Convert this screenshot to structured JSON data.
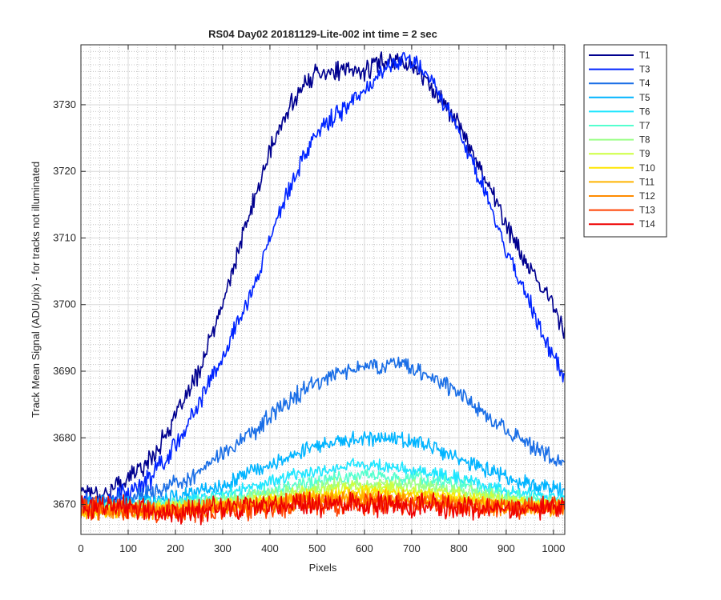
{
  "chart_data": {
    "type": "line",
    "title": "RS04 Day02 20181129-Lite-002 int time = 2 sec",
    "xlabel": "Pixels",
    "ylabel": "Track Mean Signal (ADU/pix) - for tracks not illuminated",
    "xlim": [
      0,
      1024
    ],
    "ylim": [
      3665.5,
      3739
    ],
    "xticks": [
      0,
      100,
      200,
      300,
      400,
      500,
      600,
      700,
      800,
      900,
      1000
    ],
    "yticks": [
      3670,
      3680,
      3690,
      3700,
      3710,
      3720,
      3730
    ],
    "grid": true,
    "minor_grid": true,
    "legend_position": "outside-top-right",
    "x": [
      0,
      50,
      100,
      150,
      200,
      250,
      300,
      350,
      400,
      450,
      500,
      550,
      600,
      650,
      700,
      750,
      800,
      850,
      900,
      950,
      1000,
      1024
    ],
    "series": [
      {
        "name": "T1",
        "color": "#00008f",
        "noise": 0.9,
        "values": [
          3672.5,
          3671.5,
          3674,
          3677,
          3683,
          3690,
          3700,
          3712,
          3723,
          3731,
          3735,
          3735,
          3735,
          3737,
          3736,
          3732,
          3727,
          3720,
          3712,
          3705,
          3700,
          3696
        ]
      },
      {
        "name": "T3",
        "color": "#0024ff",
        "noise": 0.9,
        "values": [
          3671,
          3670.5,
          3672,
          3674,
          3679,
          3685,
          3692,
          3700,
          3710,
          3719,
          3726,
          3729,
          3732,
          3736,
          3737,
          3733,
          3726,
          3718,
          3708,
          3700,
          3692,
          3689
        ]
      },
      {
        "name": "T4",
        "color": "#1a6ee6",
        "noise": 0.8,
        "values": [
          3670.5,
          3670.5,
          3671,
          3671.5,
          3673,
          3675,
          3677.5,
          3680,
          3683,
          3686,
          3688.5,
          3690,
          3690.5,
          3691,
          3690.5,
          3689,
          3687,
          3684,
          3681,
          3679,
          3677,
          3676
        ]
      },
      {
        "name": "T5",
        "color": "#00b4ff",
        "noise": 0.7,
        "values": [
          3670,
          3670,
          3670,
          3670.5,
          3671,
          3672,
          3673,
          3674.5,
          3676,
          3677.5,
          3679,
          3679.5,
          3680,
          3680,
          3679.5,
          3678.5,
          3677,
          3675.5,
          3674,
          3673,
          3672.5,
          3672
        ]
      },
      {
        "name": "T6",
        "color": "#1ee6ff",
        "noise": 0.6,
        "values": [
          3669.5,
          3669.5,
          3670,
          3670,
          3670.5,
          3671,
          3671.5,
          3672.5,
          3673.5,
          3674.5,
          3675,
          3675.5,
          3676,
          3675.5,
          3675,
          3674.5,
          3674,
          3673,
          3672,
          3671.5,
          3671,
          3671
        ]
      },
      {
        "name": "T7",
        "color": "#55ffcf",
        "noise": 0.6,
        "values": [
          3669.5,
          3669.5,
          3669.5,
          3670,
          3670,
          3670.5,
          3671,
          3671.5,
          3672,
          3673,
          3673.5,
          3674,
          3674.5,
          3674,
          3674,
          3673.5,
          3673,
          3672,
          3671.5,
          3671,
          3670.5,
          3670.5
        ]
      },
      {
        "name": "T8",
        "color": "#9bff88",
        "noise": 0.6,
        "values": [
          3669.5,
          3669.5,
          3669.5,
          3669.5,
          3670,
          3670,
          3670.5,
          3671,
          3671.5,
          3672,
          3672.5,
          3673,
          3673,
          3673,
          3673,
          3672.5,
          3672,
          3671.5,
          3671,
          3670.5,
          3670,
          3670
        ]
      },
      {
        "name": "T9",
        "color": "#cdff40",
        "noise": 0.6,
        "values": [
          3669,
          3669,
          3669.5,
          3669.5,
          3669.5,
          3670,
          3670,
          3670.5,
          3671,
          3671.5,
          3672,
          3672.5,
          3672.5,
          3672.5,
          3672,
          3672,
          3671.5,
          3671,
          3670.5,
          3670,
          3670,
          3670
        ]
      },
      {
        "name": "T10",
        "color": "#ffe600",
        "noise": 0.6,
        "values": [
          3669,
          3669,
          3669,
          3669.5,
          3669.5,
          3669.5,
          3670,
          3670,
          3670.5,
          3671,
          3671.5,
          3671.5,
          3672,
          3672,
          3671.5,
          3671.5,
          3671,
          3670.5,
          3670,
          3670,
          3669.5,
          3669.5
        ]
      },
      {
        "name": "T11",
        "color": "#ffb400",
        "noise": 0.7,
        "values": [
          3669,
          3669,
          3669,
          3669,
          3669.5,
          3669.5,
          3669.5,
          3670,
          3670,
          3670.5,
          3671,
          3671,
          3671,
          3671,
          3671,
          3670.5,
          3670.5,
          3670,
          3670,
          3669.5,
          3669.5,
          3669.5
        ]
      },
      {
        "name": "T12",
        "color": "#ff8c00",
        "noise": 0.8,
        "values": [
          3669,
          3669,
          3669,
          3669,
          3669,
          3669.5,
          3669.5,
          3669.5,
          3670,
          3670,
          3670.5,
          3670.5,
          3670.5,
          3670.5,
          3670.5,
          3670.5,
          3670,
          3670,
          3669.5,
          3669.5,
          3669.5,
          3669.5
        ]
      },
      {
        "name": "T13",
        "color": "#ff4000",
        "noise": 1.0,
        "values": [
          3669.5,
          3669.5,
          3669,
          3669,
          3669,
          3669,
          3669.5,
          3669.5,
          3669.5,
          3670,
          3670,
          3670,
          3670,
          3670,
          3670,
          3670,
          3669.5,
          3669.5,
          3669.5,
          3669.5,
          3669.5,
          3670
        ]
      },
      {
        "name": "T14",
        "color": "#ee0000",
        "noise": 1.1,
        "values": [
          3669.5,
          3669.5,
          3669.5,
          3669,
          3669,
          3669,
          3669.5,
          3669.5,
          3670,
          3670,
          3670,
          3670,
          3670,
          3670,
          3670,
          3670,
          3669.5,
          3669.5,
          3669.5,
          3669.5,
          3669.5,
          3670
        ]
      }
    ]
  }
}
